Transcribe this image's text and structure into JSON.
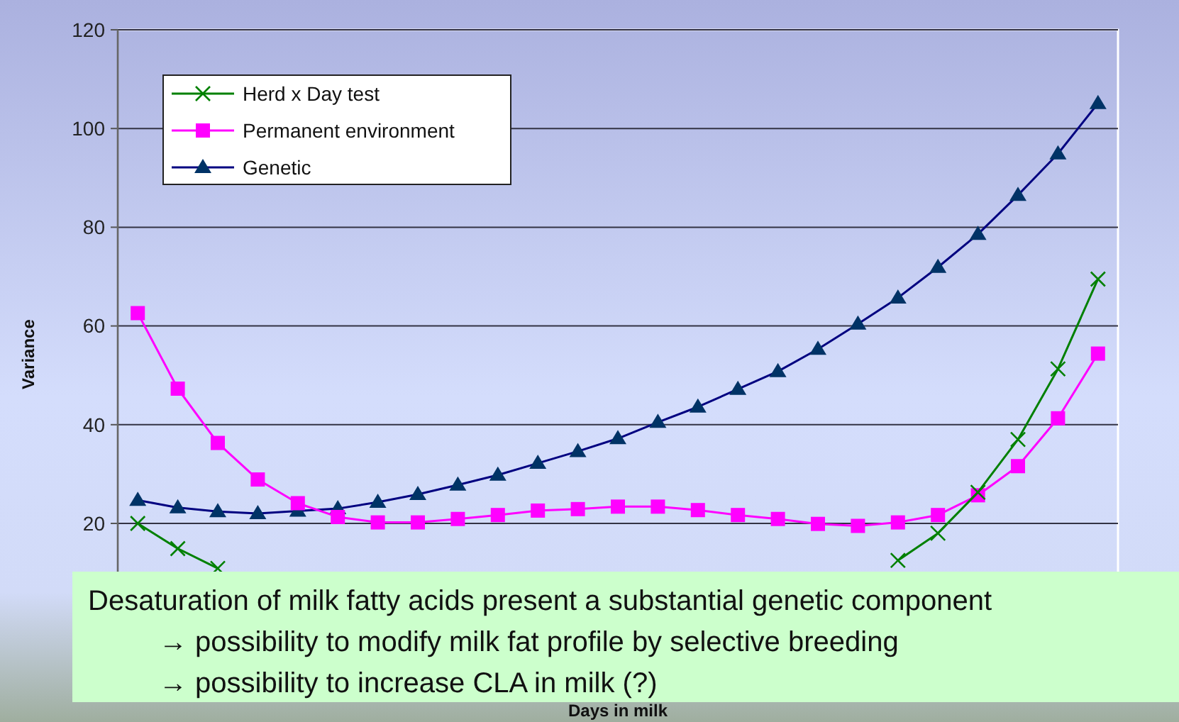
{
  "chart_data": {
    "type": "line",
    "xlabel": "Days in milk",
    "ylabel": "Variance",
    "categories": [
      null,
      null,
      null,
      null,
      null,
      null,
      null,
      null,
      null,
      null,
      null,
      null,
      null,
      null,
      null,
      null,
      null,
      null,
      null,
      null,
      null,
      null,
      null,
      null,
      null
    ],
    "series": [
      {
        "name": "Herd x Day test",
        "color": "#008000",
        "marker": "cross",
        "values": [
          20,
          14.9,
          10.9,
          null,
          null,
          null,
          null,
          null,
          null,
          null,
          null,
          null,
          null,
          null,
          null,
          null,
          null,
          null,
          null,
          12.5,
          18,
          26.3,
          37,
          51.3,
          69.5
        ]
      },
      {
        "name": "Permanent environment",
        "color": "#ff00ff",
        "marker": "square",
        "values": [
          62.6,
          47.3,
          36.3,
          28.9,
          24.1,
          21.3,
          20.2,
          20.2,
          20.9,
          21.7,
          22.6,
          22.9,
          23.4,
          23.4,
          22.7,
          21.7,
          20.9,
          19.9,
          19.5,
          20.2,
          21.7,
          25.7,
          31.6,
          41.3,
          54.4
        ]
      },
      {
        "name": "Genetic",
        "color": "#000080",
        "marker": "triangle",
        "values": [
          24.7,
          23.2,
          22.4,
          22,
          22.5,
          23,
          24.3,
          25.9,
          27.8,
          29.8,
          32.2,
          34.6,
          37.2,
          40.5,
          43.6,
          47.2,
          50.8,
          55.3,
          60.4,
          65.7,
          71.9,
          78.6,
          86.5,
          94.9,
          105.1
        ]
      }
    ],
    "ylim": [
      0,
      120
    ],
    "yticks": [
      20,
      40,
      60,
      80,
      100,
      120
    ],
    "grid": "y",
    "legend": "top left",
    "annotations": [
      "Desaturation of milk fatty acids present a substantial genetic component",
      "→ possibility to modify milk fat profile by selective breeding",
      "→ possibility to increase CLA in milk (?)"
    ]
  }
}
